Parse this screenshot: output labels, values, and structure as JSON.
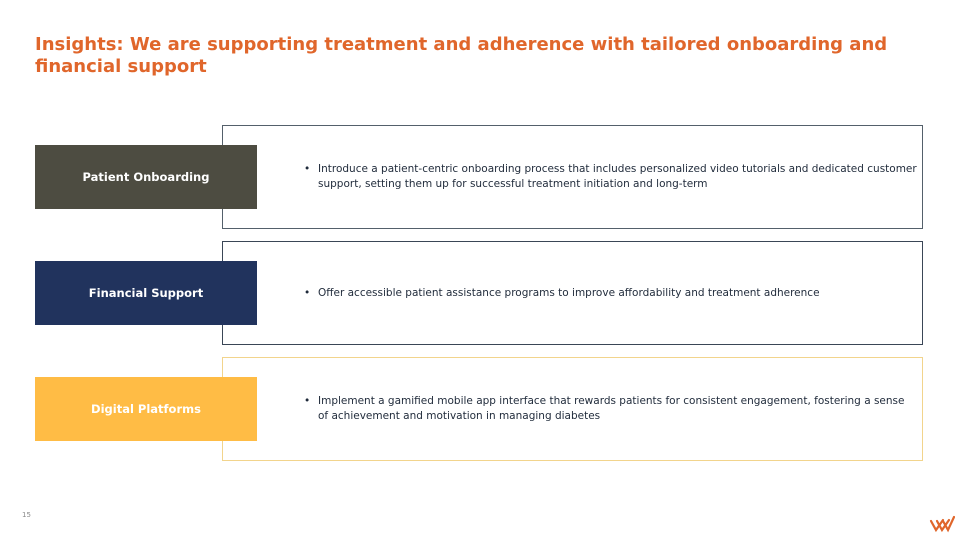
{
  "title": "Insights: We are supporting treatment and adherence with tailored onboarding and financial support",
  "rows": [
    {
      "label": "Patient Onboarding",
      "color": "#4D4C41",
      "border": "#54606B",
      "bullets": [
        "Introduce a patient-centric onboarding process that includes personalized video tutorials and dedicated customer support, setting them up for successful treatment initiation and long-term"
      ]
    },
    {
      "label": "Financial Support",
      "color": "#21335D",
      "border": "#3A4656",
      "bullets": [
        "Offer accessible patient assistance programs to improve affordability and treatment adherence"
      ]
    },
    {
      "label": "Digital Platforms",
      "color": "#FFBC45",
      "border": "#F2D48C",
      "bullets": [
        "Implement a gamified mobile app interface that rewards patients for consistent engagement, fostering a sense of achievement and motivation in managing diabetes"
      ]
    }
  ],
  "page_number": "15",
  "logo_icon": "chevron-stripes-logo-icon",
  "accent_color": "#E0662B"
}
